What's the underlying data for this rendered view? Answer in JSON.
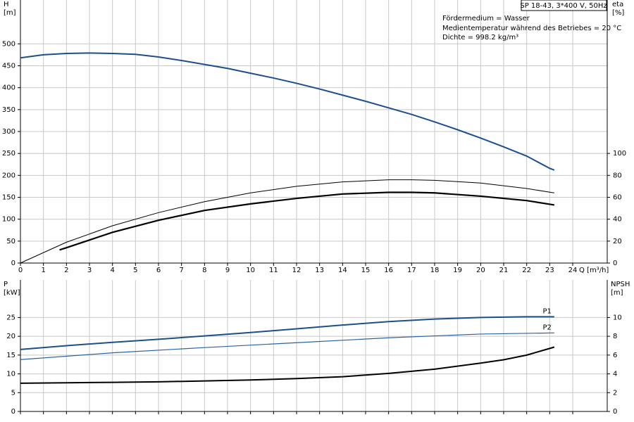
{
  "header": {
    "pump": "SP 18-43, 3*400 V, 50Hz",
    "notes": [
      "Fördermedium = Wasser",
      "Medientemperatur während des Betriebes = 20 °C",
      "Dichte = 998.2 kg/m³"
    ]
  },
  "chart_data": [
    {
      "type": "line",
      "ylabel": [
        "H",
        "[m]"
      ],
      "y2label": [
        "eta",
        "[%]"
      ],
      "xlabel": "Q [m³/h]",
      "xlim": [
        0,
        25.5
      ],
      "xticks": [
        0,
        1,
        2,
        3,
        4,
        5,
        6,
        7,
        8,
        9,
        10,
        11,
        12,
        13,
        14,
        15,
        16,
        17,
        18,
        19,
        20,
        21,
        22,
        23,
        24
      ],
      "xtick_labels": true,
      "ylim": [
        0,
        600
      ],
      "yticks": [
        0,
        50,
        100,
        150,
        200,
        250,
        300,
        350,
        400,
        450,
        500
      ],
      "y2lim": [
        0,
        240
      ],
      "y2ticks": [
        0,
        20,
        40,
        60,
        80,
        100
      ],
      "grid": true,
      "series": [
        {
          "color": "#1c4f8c",
          "line_width": 2,
          "x": [
            0,
            1,
            2,
            3,
            4,
            5,
            6,
            7,
            8,
            9,
            10,
            11,
            12,
            13,
            14,
            15,
            16,
            17,
            18,
            19,
            20,
            21,
            22,
            23,
            23.2
          ],
          "values": [
            468,
            475,
            478,
            479,
            478,
            476,
            470,
            462,
            453,
            444,
            433,
            422,
            410,
            397,
            383,
            369,
            354,
            339,
            322,
            304,
            285,
            265,
            244,
            216,
            212
          ]
        },
        {
          "color": "#000000",
          "line_width": 1,
          "axis": "y2",
          "x": [
            0,
            2,
            4,
            6,
            8,
            10,
            12,
            14,
            16,
            17,
            18,
            20,
            22,
            23.2
          ],
          "values": [
            0,
            19,
            34,
            46,
            56,
            64,
            70,
            74,
            76,
            76,
            75.5,
            73,
            68,
            64
          ]
        },
        {
          "color": "#000000",
          "line_width": 2.2,
          "axis": "y2",
          "x": [
            1.7,
            2,
            4,
            6,
            8,
            10,
            12,
            14,
            16,
            17,
            18,
            20,
            22,
            23.2
          ],
          "values": [
            12,
            14,
            28,
            39,
            48,
            54,
            59,
            63,
            64.5,
            64.5,
            64,
            61,
            57,
            53
          ]
        }
      ]
    },
    {
      "type": "line",
      "ylabel": [
        "P",
        "[kW]"
      ],
      "y2label": [
        "NPSH",
        "[m]"
      ],
      "xlim": [
        0,
        25.5
      ],
      "xticks": [
        0,
        1,
        2,
        3,
        4,
        5,
        6,
        7,
        8,
        9,
        10,
        11,
        12,
        13,
        14,
        15,
        16,
        17,
        18,
        19,
        20,
        21,
        22,
        23,
        24
      ],
      "xtick_labels": false,
      "ylim": [
        0,
        35
      ],
      "yticks": [
        0,
        5,
        10,
        15,
        20,
        25
      ],
      "y2lim": [
        0,
        14
      ],
      "y2ticks": [
        0,
        2,
        4,
        6,
        8,
        10
      ],
      "grid": true,
      "series": [
        {
          "name": "P1",
          "color": "#1c4f8c",
          "line_width": 2,
          "x": [
            0,
            2,
            4,
            6,
            8,
            10,
            12,
            14,
            16,
            18,
            20,
            22,
            23.2
          ],
          "values": [
            16.5,
            17.5,
            18.4,
            19.2,
            20.1,
            21,
            22,
            23,
            23.9,
            24.6,
            25,
            25.2,
            25.2
          ]
        },
        {
          "name": "P2",
          "color": "#2a62a6",
          "line_width": 1.2,
          "x": [
            0,
            4,
            8,
            12,
            16,
            20,
            23.2
          ],
          "values": [
            13.8,
            15.6,
            17,
            18.3,
            19.6,
            20.6,
            20.9
          ]
        },
        {
          "color": "#000000",
          "line_width": 2,
          "axis": "y2",
          "x": [
            0,
            2,
            4,
            6,
            8,
            10,
            12,
            14,
            16,
            18,
            20,
            21,
            22,
            23.2
          ],
          "values": [
            3.0,
            3.05,
            3.1,
            3.15,
            3.25,
            3.35,
            3.5,
            3.7,
            4.05,
            4.5,
            5.15,
            5.5,
            6.0,
            6.85
          ]
        }
      ]
    }
  ]
}
